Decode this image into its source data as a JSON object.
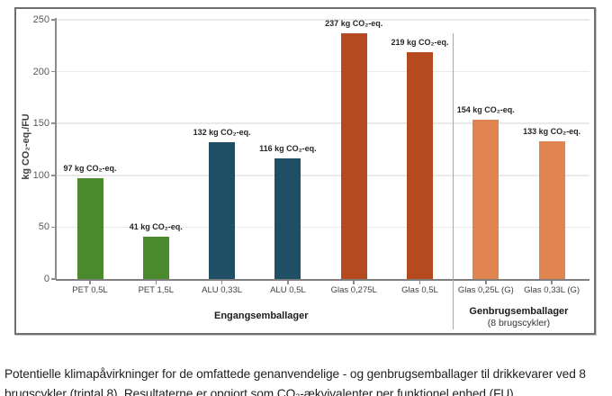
{
  "figure": {
    "caption_line1": "Potentielle klimapåvirkninger for de omfattede genanvendelige - og genbrugsemballager til drikkevarer ved 8",
    "caption_line2": "brugscykler (triptal 8). Resultaterne er opgjort som CO₂-ækvivalenter per funktionel enhed (FU)."
  },
  "chart_data": {
    "type": "bar",
    "title": "",
    "xlabel": "",
    "ylabel": "kg CO₂-eq./FU",
    "ylim": [
      0,
      250
    ],
    "yticks": [
      0,
      50,
      100,
      150,
      200,
      250
    ],
    "grid": true,
    "legend": "none",
    "categories": [
      "PET 0,5L",
      "PET 1,5L",
      "ALU 0,33L",
      "ALU 0,5L",
      "Glas 0,275L",
      "Glas 0,5L",
      "Glas 0,25L (G)",
      "Glas 0,33L (G)"
    ],
    "values": [
      97,
      41,
      132,
      116,
      237,
      219,
      154,
      133
    ],
    "bar_labels": [
      "97 kg CO₂-eq.",
      "41 kg CO₂-eq.",
      "132 kg CO₂-eq.",
      "116 kg CO₂-eq.",
      "237 kg CO₂-eq.",
      "219 kg CO₂-eq.",
      "154 kg CO₂-eq.",
      "133 kg CO₂-eq."
    ],
    "bar_colors": [
      "#4a8a2c",
      "#4a8a2c",
      "#1f4f64",
      "#1f4f64",
      "#b5491f",
      "#b5491f",
      "#e0854f",
      "#e0854f"
    ],
    "color_legend": {
      "pet_green": "#4a8a2c",
      "alu_teal": "#1f4f64",
      "glas_single_use_orange": "#b5491f",
      "glas_reusable_light_orange": "#e0854f"
    },
    "groups": [
      {
        "label": "Engangsemballager",
        "sublabel": "",
        "category_span": [
          0,
          5
        ]
      },
      {
        "label": "Genbrugsemballager",
        "sublabel": "(8 brugscykler)",
        "category_span": [
          6,
          7
        ]
      }
    ]
  }
}
